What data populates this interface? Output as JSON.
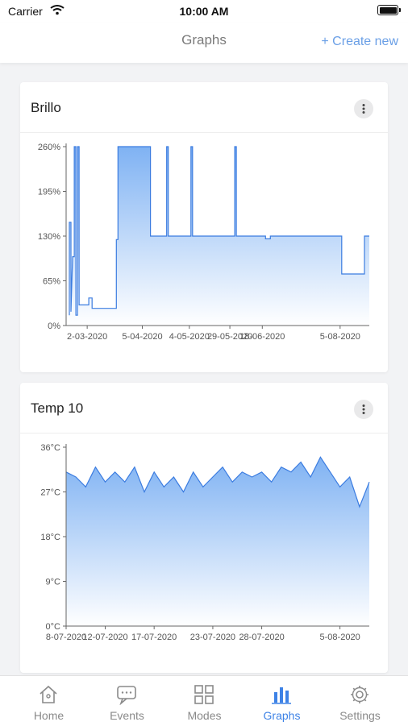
{
  "status_bar": {
    "carrier": "Carrier",
    "time": "10:00 AM"
  },
  "header": {
    "title": "Graphs",
    "action": "+ Create new"
  },
  "colors": {
    "accent": "#3d82e6",
    "line": "#3b7ce0",
    "fill_top": "#7fb2f3",
    "fill_bottom": "#ffffff",
    "inactive": "#8a8a8a"
  },
  "cards": [
    {
      "title": "Brillo",
      "menu_icon": "more-vertical-icon",
      "chart_data": {
        "type": "area",
        "title": "Brillo",
        "y_ticks": [
          "260%",
          "195%",
          "130%",
          "65%",
          "0%"
        ],
        "y_values": [
          260,
          195,
          130,
          65,
          0
        ],
        "x_ticks": [
          "2-03-2020",
          "5-04-2020",
          "4-05-2020",
          "29-05-2020",
          "18-06-2020",
          "5-08-2020"
        ],
        "ylim": [
          0,
          260
        ],
        "grid": false,
        "series": [
          {
            "x": [
              "2020-02-20",
              "2020-02-20",
              "2020-02-21",
              "2020-02-21",
              "2020-02-22",
              "2020-02-23",
              "2020-02-23",
              "2020-02-24",
              "2020-02-24",
              "2020-02-25",
              "2020-02-25",
              "2020-02-26",
              "2020-02-26",
              "2020-03-03",
              "2020-03-03",
              "2020-03-05",
              "2020-03-05",
              "2020-03-20",
              "2020-03-20",
              "2020-03-21",
              "2020-03-21",
              "2020-04-10",
              "2020-04-10",
              "2020-04-20",
              "2020-04-20",
              "2020-04-21",
              "2020-04-21",
              "2020-05-05",
              "2020-05-05",
              "2020-05-06",
              "2020-05-06",
              "2020-06-01",
              "2020-06-01",
              "2020-06-02",
              "2020-06-02",
              "2020-06-20",
              "2020-06-20",
              "2020-06-23",
              "2020-06-23",
              "2020-08-06",
              "2020-08-06",
              "2020-08-20",
              "2020-08-20",
              "2020-08-23"
            ],
            "y": [
              15,
              150,
              150,
              20,
              100,
              100,
              260,
              260,
              15,
              15,
              260,
              260,
              30,
              30,
              40,
              40,
              25,
              25,
              125,
              125,
              260,
              260,
              130,
              130,
              260,
              260,
              130,
              130,
              260,
              260,
              130,
              130,
              260,
              260,
              130,
              130,
              126,
              126,
              130,
              130,
              75,
              75,
              130,
              130
            ]
          }
        ]
      }
    },
    {
      "title": "Temp 10",
      "menu_icon": "more-vertical-icon",
      "chart_data": {
        "type": "area",
        "title": "Temp 10",
        "y_ticks": [
          "36°C",
          "27°C",
          "18°C",
          "9°C",
          "0°C"
        ],
        "y_values": [
          36,
          27,
          18,
          9,
          0
        ],
        "x_ticks": [
          "8-07-2020",
          "12-07-2020",
          "17-07-2020",
          "23-07-2020",
          "28-07-2020",
          "5-08-2020"
        ],
        "ylim": [
          0,
          36
        ],
        "grid": false,
        "series": [
          {
            "x": [
              "2020-07-08",
              "2020-07-09",
              "2020-07-10",
              "2020-07-11",
              "2020-07-12",
              "2020-07-13",
              "2020-07-14",
              "2020-07-15",
              "2020-07-16",
              "2020-07-17",
              "2020-07-18",
              "2020-07-19",
              "2020-07-20",
              "2020-07-21",
              "2020-07-22",
              "2020-07-23",
              "2020-07-24",
              "2020-07-25",
              "2020-07-26",
              "2020-07-27",
              "2020-07-28",
              "2020-07-29",
              "2020-07-30",
              "2020-07-31",
              "2020-08-01",
              "2020-08-02",
              "2020-08-03",
              "2020-08-04",
              "2020-08-05",
              "2020-08-06",
              "2020-08-07",
              "2020-08-08"
            ],
            "y": [
              31,
              30,
              28,
              32,
              29,
              31,
              29,
              32,
              27,
              31,
              28,
              30,
              27,
              31,
              28,
              30,
              32,
              29,
              31,
              30,
              31,
              29,
              32,
              31,
              33,
              30,
              34,
              31,
              28,
              30,
              24,
              29
            ]
          }
        ]
      }
    }
  ],
  "tabs": [
    {
      "label": "Home",
      "icon": "home-icon",
      "active": false
    },
    {
      "label": "Events",
      "icon": "chat-bubble-icon",
      "active": false
    },
    {
      "label": "Modes",
      "icon": "grid-icon",
      "active": false
    },
    {
      "label": "Graphs",
      "icon": "bar-chart-icon",
      "active": true
    },
    {
      "label": "Settings",
      "icon": "gear-icon",
      "active": false
    }
  ]
}
